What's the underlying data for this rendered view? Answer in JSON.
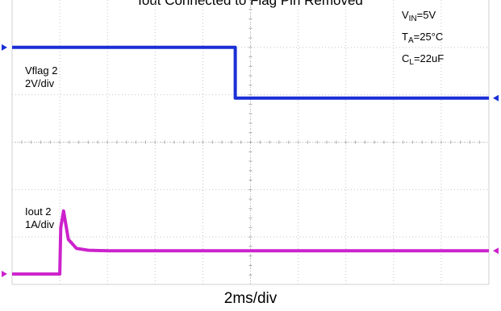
{
  "chart_data": {
    "type": "line",
    "title": "Iout Connected to Flag Pin Removed",
    "xlabel": "2ms/div",
    "conditions": {
      "vin": {
        "sym": "V",
        "sub": "IN",
        "val": "=5V"
      },
      "ta": {
        "sym": "T",
        "sub": "A",
        "val": "=25°C"
      },
      "cl": {
        "sym": "C",
        "sub": "L",
        "val": "=22uF"
      }
    },
    "grid": true,
    "x_divisions": 10,
    "y_divisions": 6,
    "xlim": [
      0,
      10
    ],
    "ylim": [
      0,
      6
    ],
    "series": [
      {
        "name": "Vflag 2",
        "scale": "2V/div",
        "color": "#1a2fd6",
        "x": [
          0,
          4.68,
          4.68,
          10
        ],
        "y": [
          5.0,
          5.0,
          3.93,
          3.93
        ]
      },
      {
        "name": "Iout 2",
        "scale": "1A/div",
        "color": "#cc22cc",
        "x": [
          0,
          1.0,
          1.02,
          1.08,
          1.18,
          1.35,
          1.6,
          2.0,
          10
        ],
        "y": [
          0.22,
          0.22,
          1.2,
          1.55,
          0.95,
          0.76,
          0.72,
          0.71,
          0.71
        ]
      }
    ]
  }
}
